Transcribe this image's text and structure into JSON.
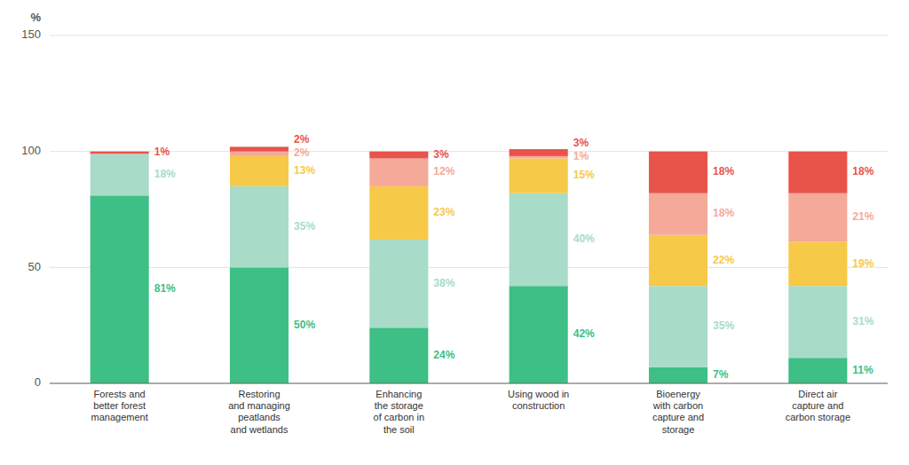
{
  "chart_data": {
    "type": "bar",
    "stacked": true,
    "data_labels": true,
    "grid": true,
    "ylabel": "%",
    "categories": [
      "Forests and\nbetter forest\nmanagement",
      "Restoring\nand managing\npeatlands\nand wetlands",
      "Enhancing\nthe storage\nof carbon in\nthe soil",
      "Using wood in\nconstruction",
      "Bioenergy\nwith carbon\ncapture and\nstorage",
      "Direct air\ncapture and\ncarbon storage"
    ],
    "series": [
      {
        "color": "#3dbf85",
        "values": [
          81,
          50,
          24,
          42,
          7,
          11
        ],
        "value_labels": [
          "81%",
          "50%",
          "24%",
          "42%",
          "7%",
          "11%"
        ]
      },
      {
        "color": "#a8dcc8",
        "values": [
          18,
          35,
          38,
          40,
          35,
          31
        ],
        "value_labels": [
          "18%",
          "35%",
          "38%",
          "40%",
          "35%",
          "31%"
        ]
      },
      {
        "color": "#f7c948",
        "values": [
          0,
          13,
          23,
          15,
          22,
          19
        ],
        "value_labels": [
          null,
          "13%",
          "23%",
          "15%",
          "22%",
          "19%"
        ]
      },
      {
        "color": "#f5a998",
        "values": [
          0,
          2,
          12,
          1,
          18,
          21
        ],
        "value_labels": [
          null,
          "2%",
          "12%",
          "1%",
          "18%",
          "21%"
        ]
      },
      {
        "color": "#e8534a",
        "values": [
          1,
          2,
          3,
          3,
          18,
          18
        ],
        "value_labels": [
          "1%",
          "2%",
          "3%",
          "3%",
          "18%",
          "18%"
        ]
      }
    ],
    "ylim": [
      0,
      150
    ],
    "yticks": [
      0,
      50,
      100,
      150
    ]
  }
}
